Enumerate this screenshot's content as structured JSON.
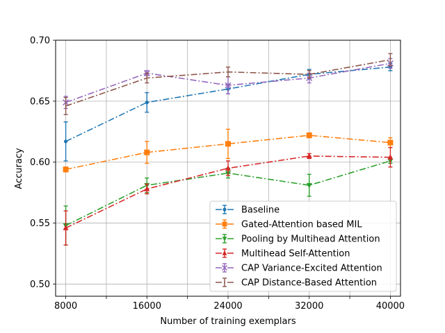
{
  "chart_data": {
    "type": "line",
    "title": "",
    "xlabel": "Number of training exemplars",
    "ylabel": "Accuracy",
    "x": [
      8000,
      16000,
      24000,
      32000,
      40000
    ],
    "xlim": [
      7000,
      41000
    ],
    "ylim": [
      0.49,
      0.7
    ],
    "xticks": [
      8000,
      16000,
      24000,
      32000,
      40000
    ],
    "xtick_labels": [
      "8000",
      "16000",
      "24000",
      "32000",
      "40000"
    ],
    "xgrid": [
      8000,
      12000,
      16000,
      20000,
      24000,
      28000,
      32000,
      36000,
      40000
    ],
    "yticks": [
      0.5,
      0.55,
      0.6,
      0.65,
      0.7
    ],
    "ytick_labels": [
      "0.50",
      "0.55",
      "0.60",
      "0.65",
      "0.70"
    ],
    "grid": true,
    "legend_position": "lower-right",
    "series": [
      {
        "name": "Baseline",
        "color": "#1f77b4",
        "marker": "point",
        "values": [
          0.617,
          0.649,
          0.66,
          0.672,
          0.678
        ],
        "errors": [
          0.016,
          0.008,
          0.004,
          0.004,
          0.003
        ]
      },
      {
        "name": "Gated-Attention based MIL",
        "color": "#ff7f0e",
        "marker": "square",
        "values": [
          0.594,
          0.608,
          0.615,
          0.622,
          0.616
        ],
        "errors": [
          0.002,
          0.009,
          0.012,
          0.002,
          0.004
        ]
      },
      {
        "name": "Pooling by Multihead Attention",
        "color": "#2ca02c",
        "marker": "triangle_down",
        "values": [
          0.548,
          0.581,
          0.591,
          0.581,
          0.601
        ],
        "errors": [
          0.016,
          0.006,
          0.004,
          0.009,
          0.002
        ]
      },
      {
        "name": "Multihead Self-Attention",
        "color": "#d62728",
        "marker": "triangle_up",
        "values": [
          0.546,
          0.578,
          0.595,
          0.605,
          0.604
        ],
        "errors": [
          0.014,
          0.004,
          0.006,
          0.002,
          0.008
        ]
      },
      {
        "name": "CAP Variance-Excited Attention",
        "color": "#9467bd",
        "marker": "x",
        "values": [
          0.649,
          0.673,
          0.663,
          0.669,
          0.681
        ],
        "errors": [
          0.005,
          0.002,
          0.007,
          0.004,
          0.004
        ]
      },
      {
        "name": "CAP Distance-Based Attention",
        "color": "#8c564b",
        "marker": "none",
        "values": [
          0.646,
          0.669,
          0.674,
          0.672,
          0.684
        ],
        "errors": [
          0.007,
          0.004,
          0.004,
          0.003,
          0.005
        ]
      }
    ]
  }
}
